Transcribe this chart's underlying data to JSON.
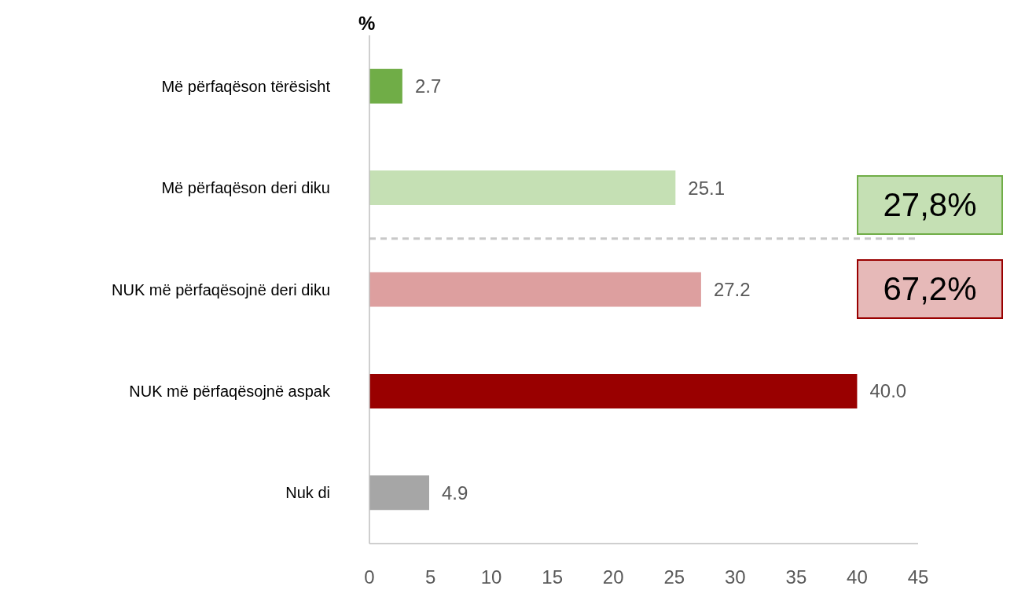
{
  "chart_data": {
    "type": "bar",
    "orientation": "horizontal",
    "ylabel": "%",
    "categories": [
      "Më përfaqëson tërësisht",
      "Më përfaqëson deri diku",
      "NUK më përfaqësojnë deri diku",
      "NUK më përfaqësojnë aspak",
      "Nuk di"
    ],
    "values": [
      2.7,
      25.1,
      27.2,
      40.0,
      4.9
    ],
    "colors": [
      "#70ad47",
      "#c5e0b4",
      "#dd9f9f",
      "#990000",
      "#a6a6a6"
    ],
    "value_labels": [
      "2.7",
      "25.1",
      "27.2",
      "40.0",
      "4.9"
    ],
    "xlim": [
      0,
      45
    ],
    "xticks": [
      0,
      5,
      10,
      15,
      20,
      25,
      30,
      35,
      40,
      45
    ],
    "grid": false,
    "legend": false,
    "annotations": [
      "27,8%",
      "67,2%"
    ]
  }
}
